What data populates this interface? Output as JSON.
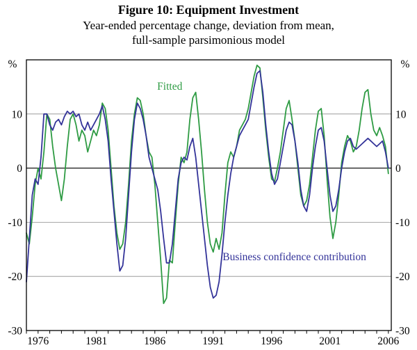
{
  "header": {
    "title": "Figure 10: Equipment Investment",
    "subtitle_line1": "Year-ended percentage change, deviation from mean,",
    "subtitle_line2": "full-sample parsimonious model"
  },
  "chart_data": {
    "type": "line",
    "title": "Figure 10: Equipment Investment",
    "subtitle": "Year-ended percentage change, deviation from mean, full-sample parsimonious model",
    "unit_label": "%",
    "xlim": [
      1975,
      2006.25
    ],
    "ylim": [
      -30,
      20
    ],
    "x_start": 1975,
    "x_step": 0.25,
    "x_tick_years_labeled": [
      "1976",
      "1981",
      "1986",
      "1991",
      "1996",
      "2001",
      "2006"
    ],
    "x_minor_tick_start": 1975,
    "x_minor_tick_end": 2006,
    "y_tick_labels": [
      10,
      0,
      -10,
      -20,
      -30
    ],
    "gridlines": [
      10,
      -10,
      -20
    ],
    "zero_line": 0,
    "grid": true,
    "legend_position": "inline-annotations",
    "colors": {
      "fitted": "#2e9b43",
      "confidence": "#333399",
      "grid": "#8c8c8c",
      "frame": "#000000"
    },
    "series": [
      {
        "name": "Fitted",
        "color": "#2e9b43",
        "values": [
          -12,
          -14,
          -9,
          -3,
          0,
          -2,
          3,
          10,
          9,
          4,
          0,
          -3,
          -6,
          -2,
          4,
          9,
          10,
          8,
          5,
          7,
          6,
          3,
          5,
          7,
          6,
          8,
          12,
          11,
          7,
          0,
          -7,
          -12,
          -15,
          -14,
          -10,
          -3,
          5,
          10,
          13,
          12.5,
          10,
          6,
          3,
          2,
          -3,
          -10,
          -17,
          -25,
          -24,
          -17,
          -17.5,
          -10,
          -3,
          2,
          1,
          3,
          9,
          13,
          14,
          9,
          3,
          -4,
          -10,
          -14,
          -15.5,
          -13,
          -15,
          -12,
          -5,
          1,
          3,
          2,
          4,
          7,
          8,
          9,
          11,
          14,
          17,
          19,
          18.5,
          13,
          7,
          2,
          -2,
          -2.5,
          0,
          3,
          7,
          11,
          12.5,
          9,
          5,
          0,
          -5,
          -7,
          -6,
          -3,
          2,
          7,
          10.5,
          11,
          6,
          -2,
          -9,
          -13,
          -10,
          -5,
          1,
          4,
          6,
          5,
          3,
          4,
          7,
          11,
          14,
          14.5,
          10,
          7,
          6,
          7.5,
          6,
          4,
          -1
        ]
      },
      {
        "name": "Business confidence contribution",
        "color": "#333399",
        "values": [
          -21,
          -13,
          -5,
          -2,
          -3,
          2,
          10,
          10,
          8,
          7,
          8.5,
          9,
          8,
          9.5,
          10.5,
          10,
          10.5,
          9.5,
          10,
          8,
          7,
          8.5,
          7,
          8,
          9,
          10,
          11.5,
          9,
          5,
          -2,
          -8,
          -14,
          -19,
          -18,
          -13,
          -5,
          3,
          9,
          12,
          11,
          9,
          6,
          2,
          0,
          -2,
          -4,
          -8,
          -13,
          -17.5,
          -17.5,
          -14,
          -8,
          -2,
          1,
          2,
          1.5,
          4,
          5.5,
          2,
          -3,
          -8,
          -13,
          -18,
          -22,
          -24,
          -23.5,
          -21,
          -16,
          -10,
          -5,
          -1,
          2,
          4,
          6,
          7,
          8,
          9,
          12,
          15,
          17.5,
          18,
          14,
          8,
          3,
          -1,
          -3,
          -2,
          1,
          4,
          7,
          8.5,
          8,
          5,
          1,
          -4,
          -7,
          -8,
          -5,
          0,
          4,
          7,
          7.5,
          5,
          0,
          -5,
          -8,
          -7,
          -4,
          0,
          3,
          5,
          5.5,
          4,
          3.5,
          4,
          4.5,
          5,
          5.5,
          5,
          4.5,
          4,
          4.5,
          5,
          3,
          0
        ]
      }
    ],
    "annotations": [
      {
        "text": "Fitted",
        "x": 1986.2,
        "y": 14.5,
        "color": "#2e9b43",
        "anchor": "start"
      },
      {
        "text": "Business confidence contribution",
        "x": 1991.8,
        "y": -17,
        "color": "#333399",
        "anchor": "start"
      }
    ]
  }
}
